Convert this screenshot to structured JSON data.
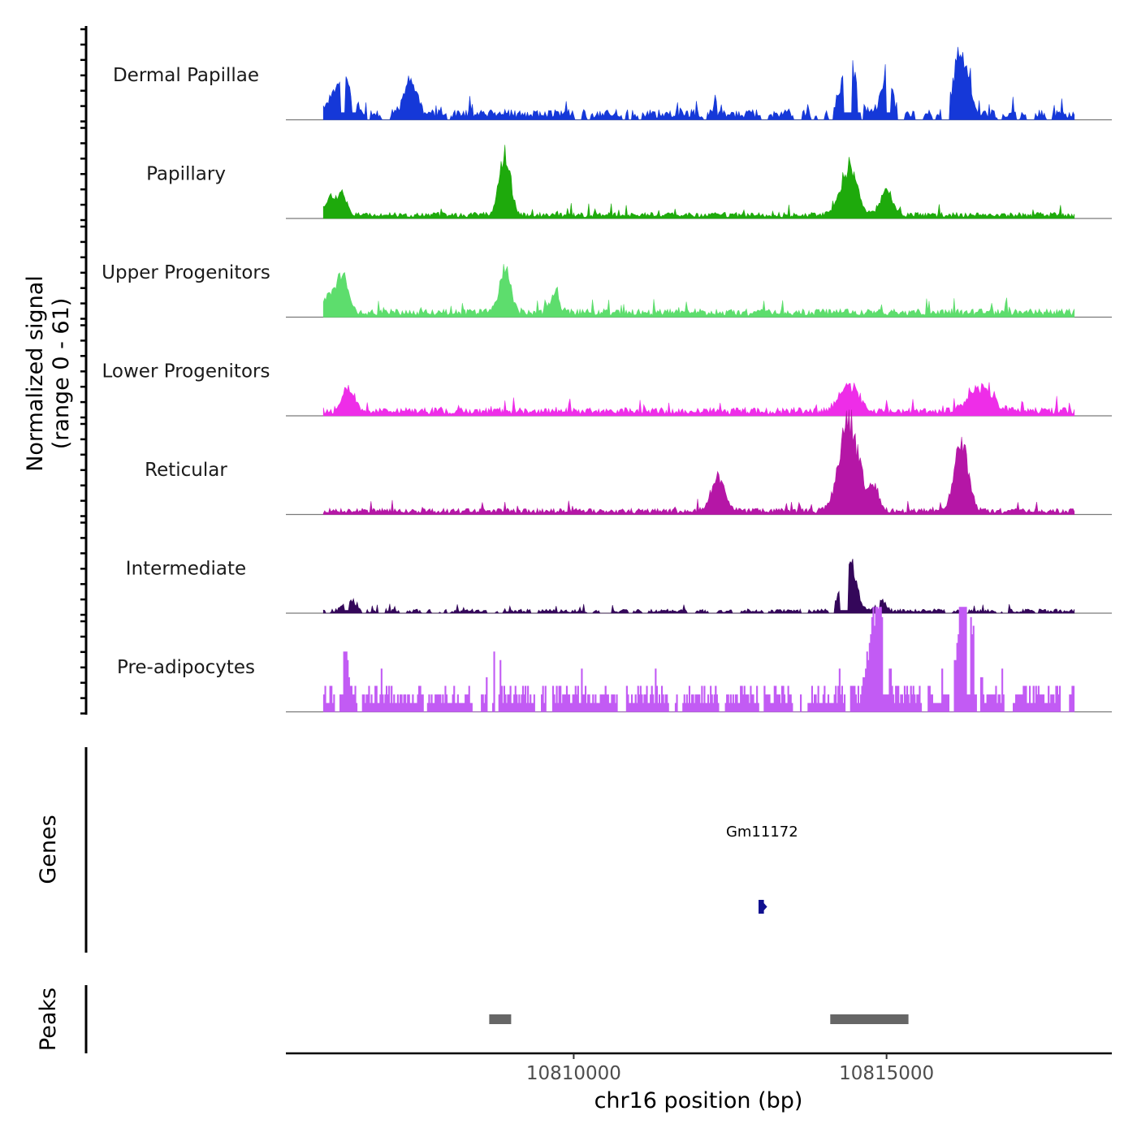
{
  "chart_data": {
    "type": "area",
    "title": "",
    "ylabel_line1": "Normalized signal",
    "ylabel_line2": "(range 0 - 61)",
    "xlabel": "chr16 position (bp)",
    "chromosome": "chr16",
    "xlim": [
      10805400,
      10818600
    ],
    "ylim": [
      0,
      61
    ],
    "x_ticks": [
      10810000,
      10815000
    ],
    "x_tick_labels": [
      "10810000",
      "10815000"
    ],
    "signal_start": 10806000,
    "signal_end": 10818000,
    "tracks": [
      {
        "name": "Dermal Papillae",
        "color": "#1538d8",
        "peaks": [
          {
            "center": 10806300,
            "height": 28,
            "width": 150
          },
          {
            "center": 10807400,
            "height": 25,
            "width": 100
          },
          {
            "center": 10814400,
            "height": 42,
            "width": 120
          },
          {
            "center": 10815000,
            "height": 28,
            "width": 90
          },
          {
            "center": 10816200,
            "height": 48,
            "width": 110
          }
        ],
        "base": 5,
        "gappy": true,
        "seed": 11
      },
      {
        "name": "Papillary",
        "color": "#1eaa0c",
        "peaks": [
          {
            "center": 10806100,
            "height": 12,
            "width": 70
          },
          {
            "center": 10806300,
            "height": 16,
            "width": 80
          },
          {
            "center": 10808900,
            "height": 48,
            "width": 90
          },
          {
            "center": 10814400,
            "height": 36,
            "width": 130
          },
          {
            "center": 10815000,
            "height": 18,
            "width": 100
          }
        ],
        "base": 3,
        "gappy": false,
        "seed": 23
      },
      {
        "name": "Upper Progenitors",
        "color": "#5ddd6d",
        "peaks": [
          {
            "center": 10806100,
            "height": 12,
            "width": 90
          },
          {
            "center": 10806300,
            "height": 30,
            "width": 90
          },
          {
            "center": 10808900,
            "height": 32,
            "width": 90
          },
          {
            "center": 10809700,
            "height": 14,
            "width": 70
          }
        ],
        "base": 4,
        "gappy": false,
        "seed": 37
      },
      {
        "name": "Lower Progenitors",
        "color": "#ee2de8",
        "peaks": [
          {
            "center": 10806400,
            "height": 16,
            "width": 90
          },
          {
            "center": 10814400,
            "height": 20,
            "width": 150
          },
          {
            "center": 10816500,
            "height": 18,
            "width": 180
          }
        ],
        "base": 4,
        "gappy": false,
        "seed": 41
      },
      {
        "name": "Reticular",
        "color": "#b516a6",
        "peaks": [
          {
            "center": 10812300,
            "height": 25,
            "width": 110
          },
          {
            "center": 10814400,
            "height": 68,
            "width": 150
          },
          {
            "center": 10814800,
            "height": 18,
            "width": 80
          },
          {
            "center": 10816200,
            "height": 50,
            "width": 110
          }
        ],
        "base": 3,
        "gappy": false,
        "seed": 53
      },
      {
        "name": "Intermediate",
        "color": "#34075a",
        "peaks": [
          {
            "center": 10806400,
            "height": 7,
            "width": 90
          },
          {
            "center": 10814400,
            "height": 38,
            "width": 110
          },
          {
            "center": 10814900,
            "height": 10,
            "width": 70
          }
        ],
        "base": 2,
        "gappy": true,
        "seed": 67
      },
      {
        "name": "Pre-adipocytes",
        "color": "#c25bf4",
        "peaks": [
          {
            "center": 10806350,
            "height": 36,
            "width": 60
          },
          {
            "center": 10814850,
            "height": 78,
            "width": 110
          },
          {
            "center": 10816250,
            "height": 82,
            "width": 110
          }
        ],
        "base": 12,
        "gappy": true,
        "blocky": true,
        "seed": 79
      }
    ],
    "genes": [
      {
        "name": "Gm11172",
        "start": 10812980,
        "end": 10813040,
        "strand": "+",
        "color": "#101090"
      }
    ],
    "peaks_track": [
      {
        "start": 10808650,
        "end": 10809000
      },
      {
        "start": 10814100,
        "end": 10815350
      }
    ]
  },
  "labels": {
    "genes_axis": "Genes",
    "peaks_axis": "Peaks"
  }
}
